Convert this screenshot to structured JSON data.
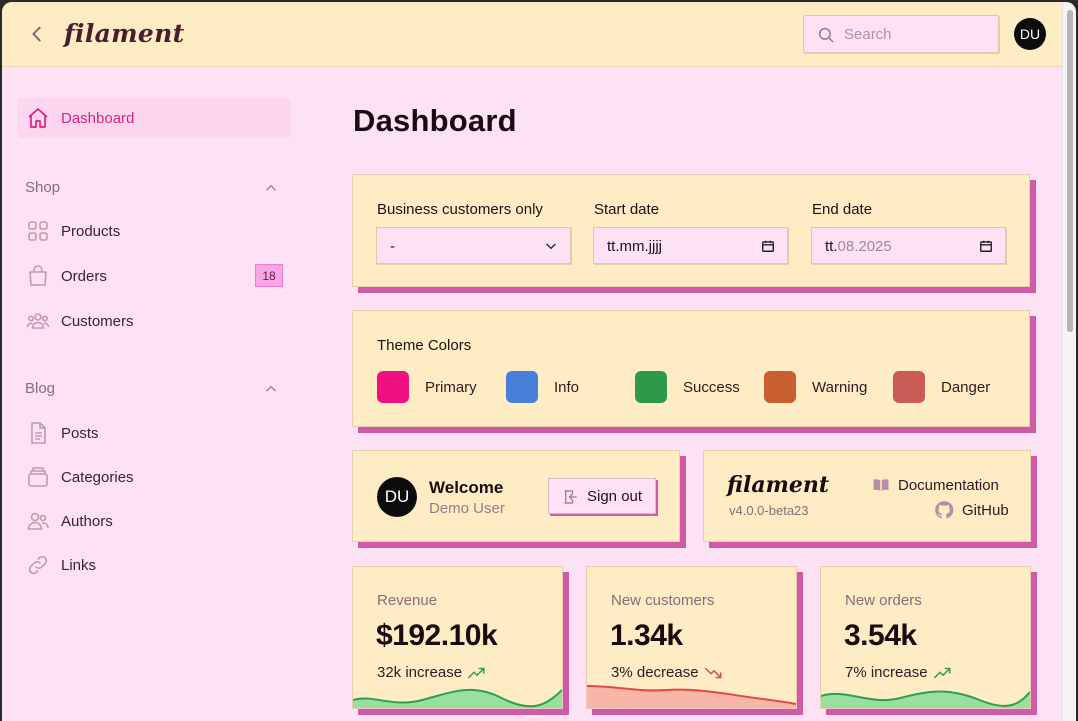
{
  "topbar": {
    "logo": "filament",
    "search_placeholder": "Search",
    "user_initials": "DU"
  },
  "sidebar": {
    "dashboard": "Dashboard",
    "groups": [
      {
        "label": "Shop",
        "items": [
          {
            "label": "Products",
            "icon": "grid-icon"
          },
          {
            "label": "Orders",
            "icon": "shopping-bag-icon",
            "badge": "18"
          },
          {
            "label": "Customers",
            "icon": "users-group-icon"
          }
        ]
      },
      {
        "label": "Blog",
        "items": [
          {
            "label": "Posts",
            "icon": "document-icon"
          },
          {
            "label": "Categories",
            "icon": "folder-icon"
          },
          {
            "label": "Authors",
            "icon": "users-icon"
          },
          {
            "label": "Links",
            "icon": "link-icon"
          }
        ]
      }
    ]
  },
  "main": {
    "title": "Dashboard",
    "filters": {
      "business_label": "Business customers only",
      "business_value": "-",
      "start_label": "Start date",
      "start_value": "tt.mm.jjjj",
      "end_label": "End date",
      "end_prefix": "tt.",
      "end_value": "08.2025"
    },
    "theme": {
      "title": "Theme Colors",
      "colors": [
        {
          "label": "Primary",
          "hex": "#ef0f7e"
        },
        {
          "label": "Info",
          "hex": "#4a7fd9"
        },
        {
          "label": "Success",
          "hex": "#2d9a4a"
        },
        {
          "label": "Warning",
          "hex": "#c95f2e"
        },
        {
          "label": "Danger",
          "hex": "#c95a55"
        }
      ]
    },
    "welcome": {
      "initials": "DU",
      "title": "Welcome",
      "user": "Demo User",
      "signout": "Sign out"
    },
    "info": {
      "logo": "filament",
      "version": "v4.0.0-beta23",
      "docs": "Documentation",
      "github": "GitHub"
    },
    "stats": [
      {
        "label": "Revenue",
        "value": "$192.10k",
        "desc": "32k increase",
        "trend": "up",
        "color": "#2f9e54"
      },
      {
        "label": "New customers",
        "value": "1.34k",
        "desc": "3% decrease",
        "trend": "down",
        "color": "#e24a45"
      },
      {
        "label": "New orders",
        "value": "3.54k",
        "desc": "7% increase",
        "trend": "up",
        "color": "#2f9e54"
      }
    ]
  }
}
